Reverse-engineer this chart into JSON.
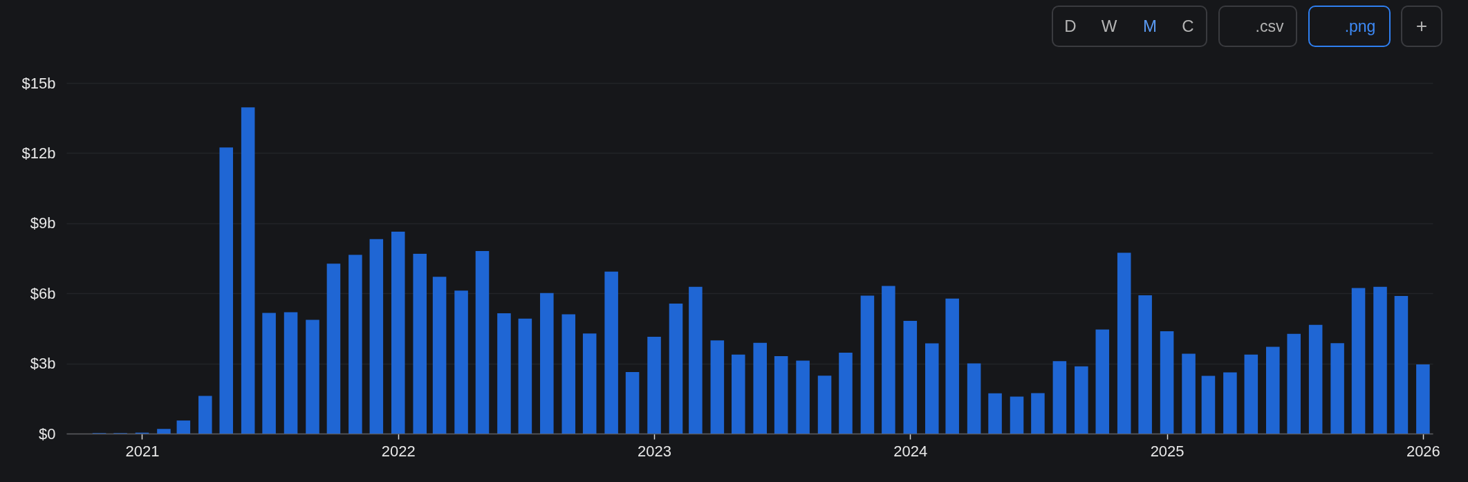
{
  "chart_data": {
    "type": "bar",
    "x": [
      "2020-11",
      "2020-12",
      "2021-01",
      "2021-02",
      "2021-03",
      "2021-04",
      "2021-05",
      "2021-06",
      "2021-07",
      "2021-08",
      "2021-09",
      "2021-10",
      "2021-11",
      "2021-12",
      "2022-01",
      "2022-02",
      "2022-03",
      "2022-04",
      "2022-05",
      "2022-06",
      "2022-07",
      "2022-08",
      "2022-09",
      "2022-10",
      "2022-11",
      "2022-12",
      "2023-01",
      "2023-02",
      "2023-03",
      "2023-04",
      "2023-05",
      "2023-06",
      "2023-07",
      "2023-08",
      "2023-09",
      "2023-10",
      "2023-11",
      "2023-12",
      "2024-01",
      "2024-02",
      "2024-03",
      "2024-04",
      "2024-05",
      "2024-06",
      "2024-07",
      "2024-08",
      "2024-09",
      "2024-10",
      "2024-11",
      "2024-12",
      "2025-01",
      "2025-02",
      "2025-03",
      "2025-04",
      "2025-05",
      "2025-06",
      "2025-07",
      "2025-08",
      "2025-09",
      "2025-10",
      "2025-11",
      "2025-12",
      "2026-01"
    ],
    "series": [
      {
        "color": "#1f66d4",
        "values": [
          0.02,
          0.02,
          0.04,
          0.2,
          0.56,
          1.61,
          12.24,
          13.96,
          5.16,
          5.19,
          4.87,
          7.27,
          7.65,
          8.32,
          8.64,
          7.69,
          6.71,
          6.12,
          7.81,
          5.15,
          4.92,
          6.01,
          5.1,
          4.28,
          6.93,
          2.63,
          4.14,
          5.56,
          6.28,
          3.99,
          3.38,
          3.88,
          3.31,
          3.12,
          2.48,
          3.46,
          5.9,
          6.32,
          4.82,
          3.86,
          5.78,
          3.0,
          1.72,
          1.58,
          1.73,
          3.1,
          2.88,
          4.45,
          7.74,
          5.92,
          4.38,
          3.42,
          2.47,
          2.62,
          3.38,
          3.71,
          4.27,
          4.65,
          3.87,
          6.23,
          6.28,
          5.89,
          2.96
        ]
      }
    ],
    "xlim": [
      "2020-09-20",
      "2026-01-10"
    ],
    "xticks": [
      "2021",
      "2022",
      "2023",
      "2024",
      "2025",
      "2026"
    ],
    "ylim": [
      0,
      15
    ],
    "yticks": [
      {
        "value": 0,
        "label": "$0"
      },
      {
        "value": 3,
        "label": "$3b"
      },
      {
        "value": 6,
        "label": "$6b"
      },
      {
        "value": 9,
        "label": "$9b"
      },
      {
        "value": 12,
        "label": "$12b"
      },
      {
        "value": 15,
        "label": "$15b"
      }
    ],
    "grid": "y",
    "annotations": [
      "D",
      "W",
      "M",
      "C",
      ".csv",
      ".png",
      "+"
    ]
  }
}
